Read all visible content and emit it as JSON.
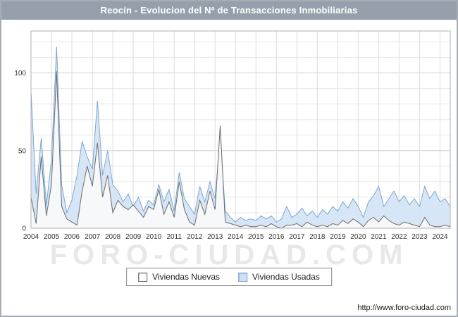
{
  "header": {
    "title": "Reocín - Evolucion del Nº de Transacciones Inmobiliarias"
  },
  "watermark": "FORO-CIUDAD.COM",
  "footer": {
    "url": "http://www.foro-ciudad.com"
  },
  "legend": {
    "items": [
      {
        "label": "Viviendas Nuevas",
        "color": "#fdfdfd",
        "border": "#666666"
      },
      {
        "label": "Viviendas Usadas",
        "color": "#cfe1f5",
        "border": "#7ba7d4"
      }
    ]
  },
  "chart_data": {
    "type": "area",
    "title": "Reocín - Evolucion del Nº de Transacciones Inmobiliarias",
    "x_start_year": 2004,
    "points_per_year": 4,
    "year_labels": [
      "2004",
      "2005",
      "2006",
      "2007",
      "2008",
      "2009",
      "2010",
      "2011",
      "2012",
      "2013",
      "2014",
      "2015",
      "2016",
      "2017",
      "2018",
      "2019",
      "2020",
      "2021",
      "2022",
      "2023",
      "2024"
    ],
    "ylim": [
      0,
      127
    ],
    "yticks": [
      0,
      50,
      100
    ],
    "grid": true,
    "legend_position": "bottom",
    "series": [
      {
        "name": "Viviendas Nuevas",
        "line_color": "#6b6b6b",
        "fill_color": "#fafafa",
        "values": [
          20,
          3,
          46,
          8,
          28,
          101,
          14,
          6,
          4,
          2,
          24,
          40,
          27,
          55,
          20,
          34,
          10,
          18,
          14,
          12,
          15,
          11,
          7,
          14,
          12,
          25,
          9,
          17,
          7,
          30,
          12,
          4,
          2,
          18,
          9,
          24,
          12,
          66,
          4,
          3,
          2,
          1,
          2,
          1,
          1,
          2,
          1,
          3,
          1,
          0,
          2,
          2,
          3,
          1,
          4,
          2,
          1,
          2,
          1,
          3,
          2,
          5,
          3,
          6,
          4,
          1,
          5,
          7,
          4,
          8,
          5,
          3,
          2,
          4,
          3,
          2,
          1,
          7,
          2,
          1,
          1,
          2,
          1
        ]
      },
      {
        "name": "Viviendas Usadas",
        "line_color": "#7ba7d4",
        "fill_color": "#d3e3f5",
        "values": [
          88,
          22,
          58,
          15,
          44,
          117,
          28,
          10,
          18,
          34,
          56,
          46,
          38,
          82,
          34,
          50,
          28,
          24,
          17,
          22,
          14,
          20,
          11,
          18,
          15,
          28,
          17,
          25,
          11,
          36,
          19,
          14,
          9,
          27,
          17,
          30,
          19,
          58,
          11,
          7,
          4,
          7,
          5,
          6,
          5,
          8,
          6,
          8,
          4,
          6,
          14,
          7,
          9,
          13,
          8,
          11,
          7,
          12,
          9,
          14,
          11,
          17,
          13,
          19,
          14,
          7,
          17,
          21,
          27,
          14,
          19,
          24,
          17,
          21,
          15,
          19,
          14,
          27,
          19,
          24,
          17,
          19,
          14
        ]
      }
    ]
  }
}
